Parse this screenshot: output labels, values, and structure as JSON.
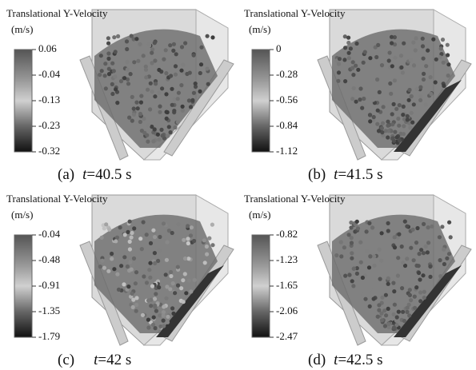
{
  "panels": [
    {
      "legend": {
        "title": "Translational Y-Velocity",
        "unit": "(m/s)",
        "labels": [
          "0.06",
          "-0.04",
          "-0.13",
          "-0.23",
          "-0.32"
        ]
      },
      "caption": {
        "tag": "(a)",
        "var": "t",
        "time": "=40.5 s"
      }
    },
    {
      "legend": {
        "title": "Translational Y-Velocity",
        "unit": "(m/s)",
        "labels": [
          "0",
          "-0.28",
          "-0.56",
          "-0.84",
          "-1.12"
        ]
      },
      "caption": {
        "tag": "(b)",
        "var": "t",
        "time": "=41.5 s"
      }
    },
    {
      "legend": {
        "title": "Translational Y-Velocity",
        "unit": "(m/s)",
        "labels": [
          "-0.04",
          "-0.48",
          "-0.91",
          "-1.35",
          "-1.79"
        ]
      },
      "caption": {
        "tag": "(c)",
        "var": "t",
        "time": "=42 s"
      }
    },
    {
      "legend": {
        "title": "Translational Y-Velocity",
        "unit": "(m/s)",
        "labels": [
          "-0.82",
          "-1.23",
          "-1.65",
          "-2.06",
          "-2.47"
        ]
      },
      "caption": {
        "tag": "(d)",
        "var": "t",
        "time": "=42.5 s"
      }
    }
  ]
}
